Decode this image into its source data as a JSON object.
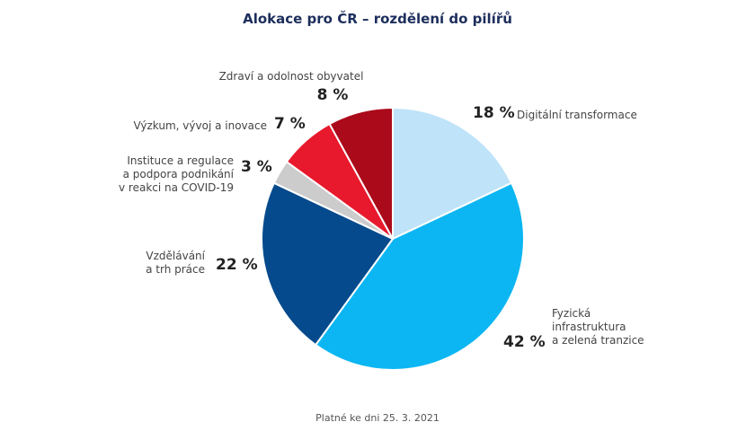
{
  "chart_data": {
    "type": "pie",
    "title": "Alokace pro ČR – rozdělení do pilířů",
    "footnote": "Platné ke dni 25. 3. 2021",
    "slices": [
      {
        "label": "Digitální transformace",
        "value": 18,
        "value_label": "18 %",
        "color": "#bfe3f8"
      },
      {
        "label": "Fyzická infrastruktura a zelená tranzice",
        "label_lines": [
          "Fyzická",
          "infrastruktura",
          "a zelená tranzice"
        ],
        "value": 42,
        "value_label": "42 %",
        "color": "#0cb6f2"
      },
      {
        "label": "Vzdělávání a trh práce",
        "label_lines": [
          "Vzdělávání",
          "a trh práce"
        ],
        "value": 22,
        "value_label": "22 %",
        "color": "#054a8c"
      },
      {
        "label": "Instituce a regulace a podpora podnikání v reakci na COVID-19",
        "label_lines": [
          "Instituce a regulace",
          "a podpora podnikání",
          "v reakci na COVID-19"
        ],
        "value": 3,
        "value_label": "3 %",
        "color": "#cccccc"
      },
      {
        "label": "Výzkum, vývoj a inovace",
        "value": 7,
        "value_label": "7 %",
        "color": "#e8192c"
      },
      {
        "label": "Zdraví a odolnost obyvatel",
        "value": 8,
        "value_label": "8 %",
        "color": "#ab0a1a"
      }
    ]
  }
}
